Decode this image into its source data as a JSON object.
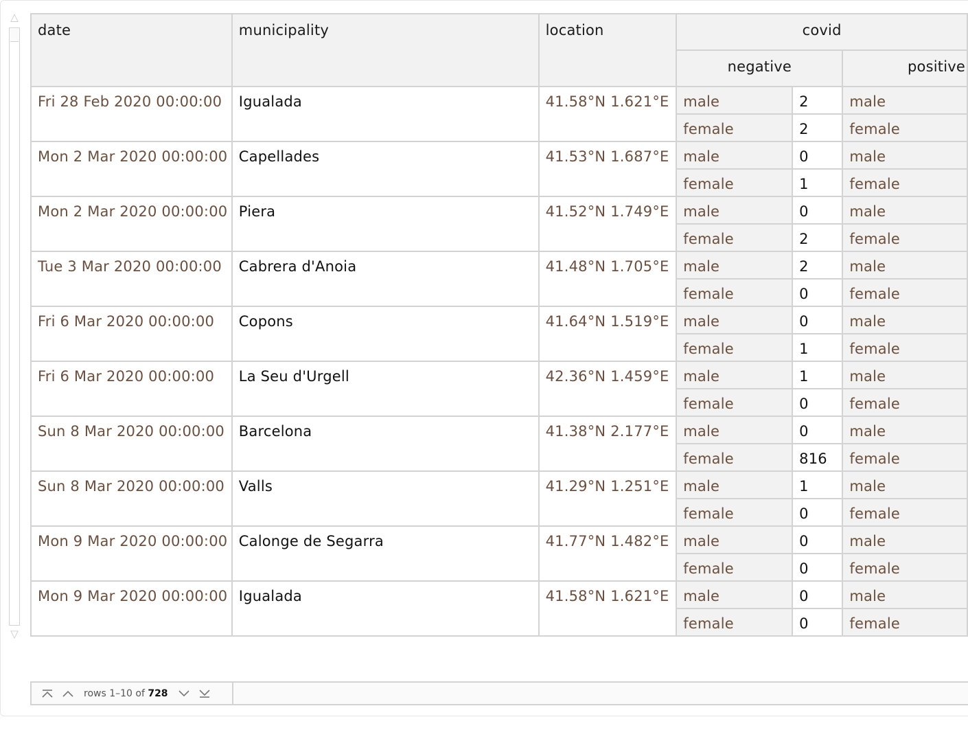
{
  "headers": {
    "date": "date",
    "municipality": "municipality",
    "location": "location",
    "covid": "covid",
    "negative": "negative",
    "positive": "positive"
  },
  "rows": [
    {
      "date": "Fri 28 Feb 2020 00:00:00",
      "municipality": "Igualada",
      "location": "41.58°N 1.621°E",
      "neg_male": "2",
      "neg_female": "2"
    },
    {
      "date": "Mon 2 Mar 2020 00:00:00",
      "municipality": "Capellades",
      "location": "41.53°N 1.687°E",
      "neg_male": "0",
      "neg_female": "1"
    },
    {
      "date": "Mon 2 Mar 2020 00:00:00",
      "municipality": "Piera",
      "location": "41.52°N 1.749°E",
      "neg_male": "0",
      "neg_female": "2"
    },
    {
      "date": "Tue 3 Mar 2020 00:00:00",
      "municipality": "Cabrera d'Anoia",
      "location": "41.48°N 1.705°E",
      "neg_male": "2",
      "neg_female": "0"
    },
    {
      "date": "Fri 6 Mar 2020 00:00:00",
      "municipality": "Copons",
      "location": "41.64°N 1.519°E",
      "neg_male": "0",
      "neg_female": "1"
    },
    {
      "date": "Fri 6 Mar 2020 00:00:00",
      "municipality": "La Seu d'Urgell",
      "location": "42.36°N 1.459°E",
      "neg_male": "1",
      "neg_female": "0"
    },
    {
      "date": "Sun 8 Mar 2020 00:00:00",
      "municipality": "Barcelona",
      "location": "41.38°N 2.177°E",
      "neg_male": "0",
      "neg_female": "816"
    },
    {
      "date": "Sun 8 Mar 2020 00:00:00",
      "municipality": "Valls",
      "location": "41.29°N 1.251°E",
      "neg_male": "1",
      "neg_female": "0"
    },
    {
      "date": "Mon 9 Mar 2020 00:00:00",
      "municipality": "Calonge de Segarra",
      "location": "41.77°N 1.482°E",
      "neg_male": "0",
      "neg_female": "0"
    },
    {
      "date": "Mon 9 Mar 2020 00:00:00",
      "municipality": "Igualada",
      "location": "41.58°N 1.621°E",
      "neg_male": "0",
      "neg_female": "0"
    }
  ],
  "sex_labels": {
    "male": "male",
    "female": "female"
  },
  "pager": {
    "prefix": "rows 1–10 of",
    "total": "728"
  },
  "icons": {
    "first": "first-page-icon",
    "prev": "previous-page-icon",
    "next": "next-page-icon",
    "last": "last-page-icon",
    "scroll_up": "scroll-up-icon",
    "scroll_down": "scroll-down-icon"
  },
  "colors": {
    "value_text": "#6b4f3f",
    "header_bg": "#f2f2f2",
    "border": "#d3d3d3"
  }
}
